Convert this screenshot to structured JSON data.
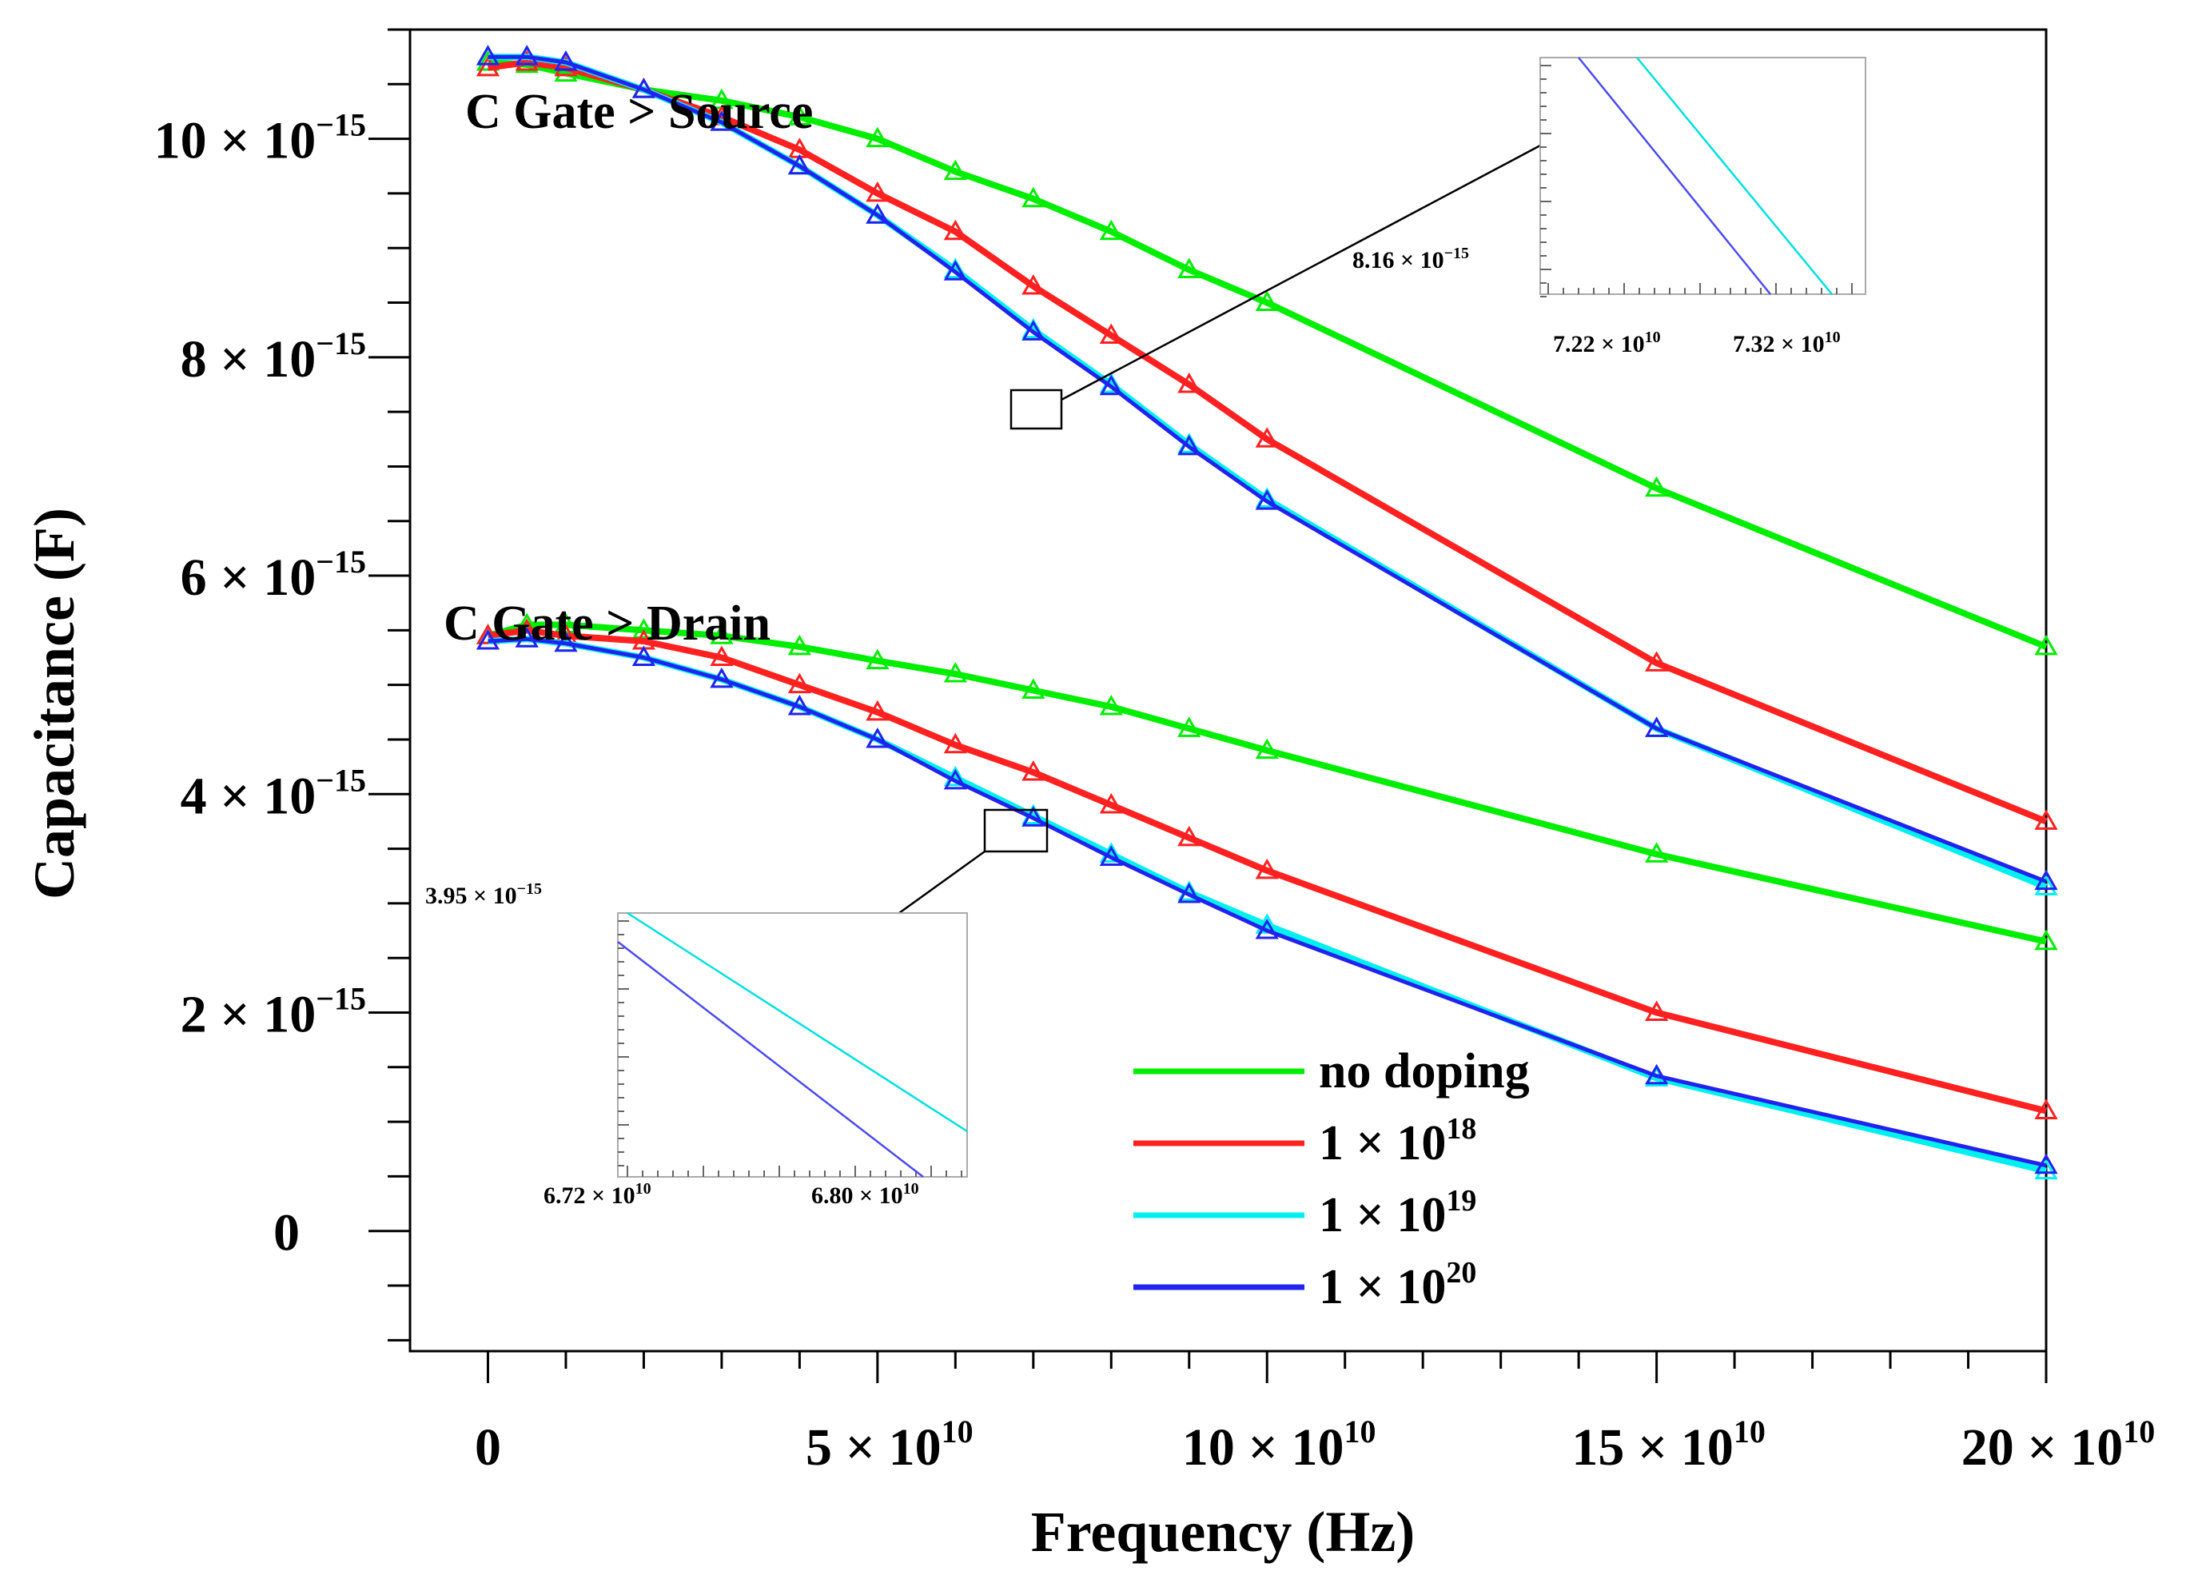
{
  "chart_data": {
    "type": "line",
    "xlabel": "Frequency (Hz)",
    "ylabel": "Capacitance (F)",
    "xlim": [
      -10000000000.0,
      200000000000.0
    ],
    "ylim": [
      -1.1e-15,
      1.1e-14
    ],
    "x_ticks": [
      {
        "value": 0,
        "mant": "0",
        "exp": ""
      },
      {
        "value": 50000000000.0,
        "mant": "5 × 10",
        "exp": "10"
      },
      {
        "value": 100000000000.0,
        "mant": "10 × 10",
        "exp": "10"
      },
      {
        "value": 150000000000.0,
        "mant": "15 × 10",
        "exp": "10"
      },
      {
        "value": 200000000000.0,
        "mant": "20 × 10",
        "exp": "10"
      }
    ],
    "y_ticks": [
      {
        "value": 0,
        "mant": "0",
        "exp": ""
      },
      {
        "value": 2e-15,
        "mant": "2 × 10",
        "exp": "−15"
      },
      {
        "value": 4e-15,
        "mant": "4 × 10",
        "exp": "−15"
      },
      {
        "value": 6e-15,
        "mant": "6 × 10",
        "exp": "−15"
      },
      {
        "value": 8e-15,
        "mant": "8 × 10",
        "exp": "−15"
      },
      {
        "value": 1e-14,
        "mant": "10 × 10",
        "exp": "−15"
      }
    ],
    "annotations": {
      "source": "C Gate > Source",
      "drain": "C Gate > Drain"
    },
    "x": [
      0,
      5000000000.0,
      10000000000.0,
      20000000000.0,
      30000000000.0,
      40000000000.0,
      50000000000.0,
      60000000000.0,
      70000000000.0,
      80000000000.0,
      90000000000.0,
      100000000000.0,
      150000000000.0,
      200000000000.0
    ],
    "series": [
      {
        "name": "no doping",
        "group": "source",
        "color": "#00ee00",
        "legend_mant": "no doping",
        "legend_exp": "",
        "values": [
          1.07e-14,
          1.068e-14,
          1.06e-14,
          1.045e-14,
          1.035e-14,
          1.02e-14,
          1e-14,
          9.7e-15,
          9.45e-15,
          9.15e-15,
          8.8e-15,
          8.5e-15,
          6.8e-15,
          5.35e-15
        ]
      },
      {
        "name": "1 × 10^18",
        "group": "source",
        "color": "#ff2020",
        "legend_mant": "1 × 10",
        "legend_exp": "18",
        "values": [
          1.065e-14,
          1.07e-14,
          1.065e-14,
          1.045e-14,
          1.02e-14,
          9.9e-15,
          9.5e-15,
          9.15e-15,
          8.65e-15,
          8.2e-15,
          7.75e-15,
          7.25e-15,
          5.2e-15,
          3.75e-15
        ]
      },
      {
        "name": "1 × 10^19",
        "group": "source",
        "color": "#00f0f0",
        "legend_mant": "1 × 10",
        "legend_exp": "19",
        "values": [
          1.075e-14,
          1.075e-14,
          1.07e-14,
          1.045e-14,
          1.015e-14,
          9.75e-15,
          9.3e-15,
          8.8e-15,
          8.25e-15,
          7.75e-15,
          7.2e-15,
          6.7e-15,
          4.6e-15,
          3.15e-15
        ]
      },
      {
        "name": "1 × 10^20",
        "group": "source",
        "color": "#2222ee",
        "legend_mant": "1 × 10",
        "legend_exp": "20",
        "values": [
          1.075e-14,
          1.075e-14,
          1.07e-14,
          1.045e-14,
          1.015e-14,
          9.75e-15,
          9.3e-15,
          8.78e-15,
          8.23e-15,
          7.73e-15,
          7.18e-15,
          6.68e-15,
          4.6e-15,
          3.2e-15
        ]
      },
      {
        "name": "no doping",
        "group": "drain",
        "color": "#00ee00",
        "values": [
          5.45e-15,
          5.55e-15,
          5.55e-15,
          5.5e-15,
          5.45e-15,
          5.35e-15,
          5.22e-15,
          5.1e-15,
          4.95e-15,
          4.8e-15,
          4.6e-15,
          4.4e-15,
          3.45e-15,
          2.65e-15
        ]
      },
      {
        "name": "1 × 10^18",
        "group": "drain",
        "color": "#ff2020",
        "values": [
          5.45e-15,
          5.5e-15,
          5.45e-15,
          5.4e-15,
          5.25e-15,
          5e-15,
          4.75e-15,
          4.45e-15,
          4.2e-15,
          3.9e-15,
          3.6e-15,
          3.3e-15,
          2e-15,
          1.1e-15
        ]
      },
      {
        "name": "1 × 10^19",
        "group": "drain",
        "color": "#00f0f0",
        "values": [
          5.4e-15,
          5.42e-15,
          5.38e-15,
          5.25e-15,
          5.05e-15,
          4.8e-15,
          4.5e-15,
          4.15e-15,
          3.8e-15,
          3.45e-15,
          3.1e-15,
          2.8e-15,
          1.4e-15,
          5.5e-16
        ]
      },
      {
        "name": "1 × 10^20",
        "group": "drain",
        "color": "#2222ee",
        "values": [
          5.4e-15,
          5.42e-15,
          5.38e-15,
          5.25e-15,
          5.05e-15,
          4.8e-15,
          4.5e-15,
          4.12e-15,
          3.78e-15,
          3.42e-15,
          3.08e-15,
          2.75e-15,
          1.42e-15,
          6e-16
        ]
      }
    ],
    "insets": [
      {
        "name": "source-inset",
        "y_label_mant": "8.16 × 10",
        "y_label_exp": "−15",
        "x_labels": [
          {
            "mant": "7.22 × 10",
            "exp": "10"
          },
          {
            "mant": "7.32 × 10",
            "exp": "10"
          }
        ]
      },
      {
        "name": "drain-inset",
        "y_label_mant": "3.95 × 10",
        "y_label_exp": "−15",
        "x_labels": [
          {
            "mant": "6.72 × 10",
            "exp": "10"
          },
          {
            "mant": "6.80 × 10",
            "exp": "10"
          }
        ]
      }
    ]
  }
}
